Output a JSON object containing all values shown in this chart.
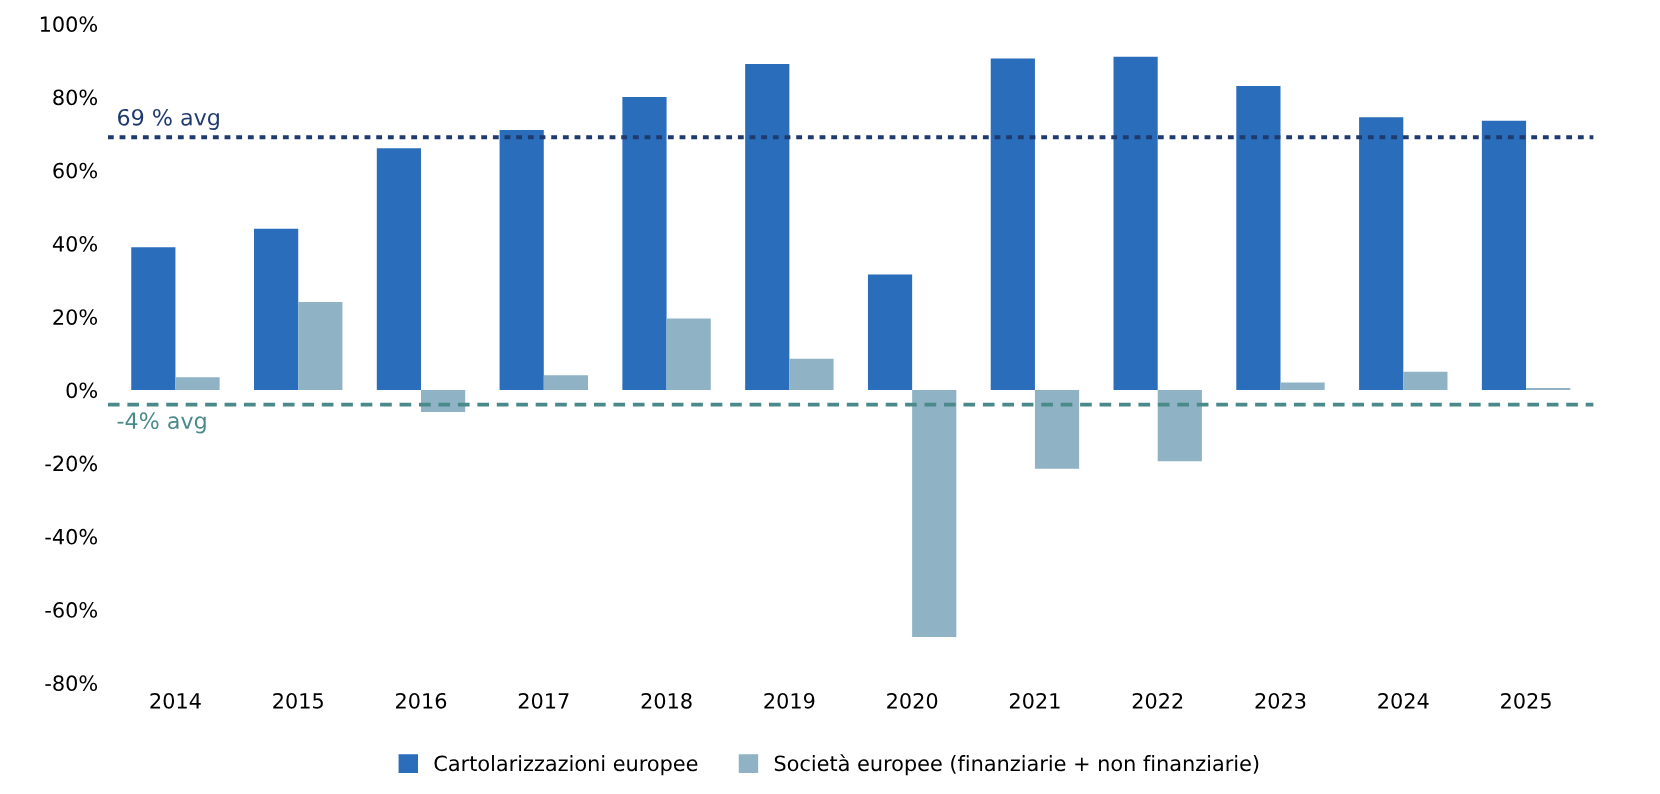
{
  "chart_data": {
    "type": "bar",
    "categories": [
      "2014",
      "2015",
      "2016",
      "2017",
      "2018",
      "2019",
      "2020",
      "2021",
      "2022",
      "2023",
      "2024",
      "2025"
    ],
    "series": [
      {
        "name": "Cartolarizzazioni europee",
        "color": "#2a6ebb",
        "values": [
          39,
          44,
          66,
          71,
          80,
          89,
          31.5,
          90.5,
          91,
          83,
          74.5,
          73.5
        ]
      },
      {
        "name": "Società europee (finanziarie + non finanziarie)",
        "color": "#8fb3c4",
        "values": [
          3.5,
          24,
          -6,
          4,
          19.5,
          8.5,
          -67.5,
          -21.5,
          -19.5,
          2,
          5,
          0.5
        ]
      }
    ],
    "ylim": [
      -80,
      100
    ],
    "yticks": [
      {
        "value": -80,
        "label": "-80%"
      },
      {
        "value": -60,
        "label": "-60%"
      },
      {
        "value": -40,
        "label": "-40%"
      },
      {
        "value": -20,
        "label": "-20%"
      },
      {
        "value": 0,
        "label": "0%"
      },
      {
        "value": 20,
        "label": "20%"
      },
      {
        "value": 40,
        "label": "40%"
      },
      {
        "value": 60,
        "label": "60%"
      },
      {
        "value": 80,
        "label": "80%"
      },
      {
        "value": 100,
        "label": "100%"
      }
    ],
    "ref_lines": [
      {
        "axis": "y",
        "value": 69,
        "label": "69 % avg",
        "color": "#1f3a6e",
        "line_style": "dotted"
      },
      {
        "axis": "y",
        "value": -4,
        "label": "-4% avg",
        "color": "#4a8a8a",
        "line_style": "dashed"
      }
    ],
    "grid": false,
    "legend": "bottom"
  }
}
